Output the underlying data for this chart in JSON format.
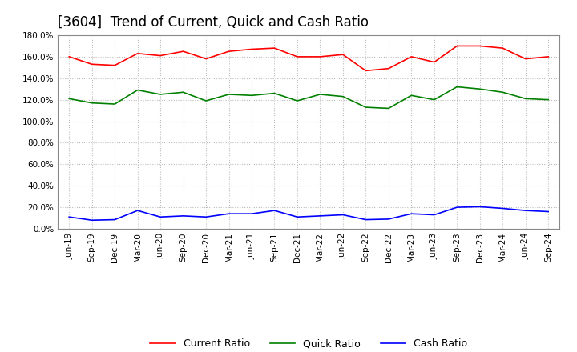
{
  "title": "[3604]  Trend of Current, Quick and Cash Ratio",
  "x_labels": [
    "Jun-19",
    "Sep-19",
    "Dec-19",
    "Mar-20",
    "Jun-20",
    "Sep-20",
    "Dec-20",
    "Mar-21",
    "Jun-21",
    "Sep-21",
    "Dec-21",
    "Mar-22",
    "Jun-22",
    "Sep-22",
    "Dec-22",
    "Mar-23",
    "Jun-23",
    "Sep-23",
    "Dec-23",
    "Mar-24",
    "Jun-24",
    "Sep-24"
  ],
  "current_ratio": [
    160.0,
    153.0,
    152.0,
    163.0,
    161.0,
    165.0,
    158.0,
    165.0,
    167.0,
    168.0,
    160.0,
    160.0,
    162.0,
    147.0,
    149.0,
    160.0,
    155.0,
    170.0,
    170.0,
    168.0,
    158.0,
    160.0
  ],
  "quick_ratio": [
    121.0,
    117.0,
    116.0,
    129.0,
    125.0,
    127.0,
    119.0,
    125.0,
    124.0,
    126.0,
    119.0,
    125.0,
    123.0,
    113.0,
    112.0,
    124.0,
    120.0,
    132.0,
    130.0,
    127.0,
    121.0,
    120.0
  ],
  "cash_ratio": [
    11.0,
    8.0,
    8.5,
    17.0,
    11.0,
    12.0,
    11.0,
    14.0,
    14.0,
    17.0,
    11.0,
    12.0,
    13.0,
    8.5,
    9.0,
    14.0,
    13.0,
    20.0,
    20.5,
    19.0,
    17.0,
    16.0
  ],
  "current_color": "#FF0000",
  "quick_color": "#008000",
  "cash_color": "#0000FF",
  "ylim": [
    0,
    180
  ],
  "yticks": [
    0,
    20,
    40,
    60,
    80,
    100,
    120,
    140,
    160,
    180
  ],
  "background_color": "#FFFFFF",
  "plot_bg_color": "#FFFFFF",
  "grid_color": "#AAAAAA",
  "title_fontsize": 12,
  "legend_fontsize": 9,
  "tick_fontsize": 7.5
}
